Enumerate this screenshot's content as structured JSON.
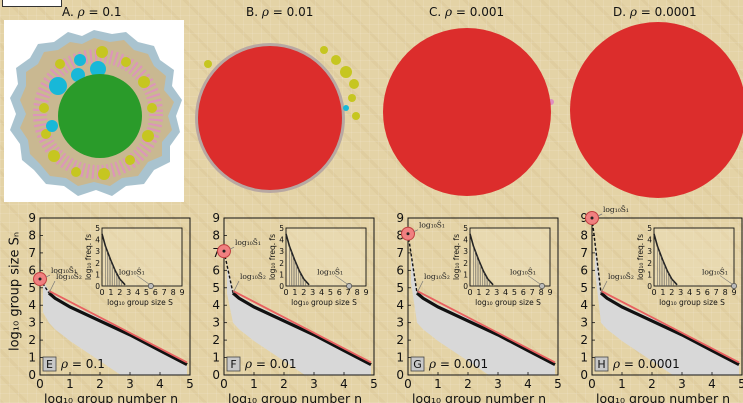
{
  "figure": {
    "top_panels": [
      {
        "letter": "A.",
        "rho": "0.1"
      },
      {
        "letter": "B.",
        "rho": "0.01"
      },
      {
        "letter": "C.",
        "rho": "0.001"
      },
      {
        "letter": "D.",
        "rho": "0.0001"
      }
    ],
    "main_ylabel": "log₁₀ group size Sₙ",
    "inset_ylabel": "log₁₀ freq. fs",
    "annotations": [
      "log₁₀Ŝ₁",
      "log₁₀Ŝ₂"
    ],
    "colors": {
      "giant": "#dc2d2c",
      "first_group": "#2a9b2a",
      "cyan_groups": "#18b8d8",
      "yellow_groups": "#c6c620",
      "fit_line": "#e86060",
      "shade": "#d6d6d6"
    }
  },
  "chart_data": [
    {
      "type": "scatter",
      "panel": "E",
      "rho": "0.1",
      "xlabel": "log₁₀ group number n",
      "ylabel": "log₁₀ group size Sₙ",
      "xlim": [
        0,
        5
      ],
      "ylim": [
        0,
        9
      ],
      "xticks": [
        "0",
        "1",
        "2",
        "3",
        "4",
        "5"
      ],
      "yticks": [
        "0",
        "1",
        "2",
        "3",
        "4",
        "5",
        "6",
        "7",
        "8",
        "9"
      ],
      "highlight_point": [
        0,
        5.5
      ],
      "rank_curve": [
        [
          0,
          5.5
        ],
        [
          0.3,
          4.7
        ],
        [
          0.5,
          4.4
        ],
        [
          1,
          3.9
        ],
        [
          2,
          3.1
        ],
        [
          3,
          2.3
        ],
        [
          4,
          1.4
        ],
        [
          4.9,
          0.6
        ]
      ],
      "inset": {
        "xlabel": "log₁₀ group size S",
        "ylabel": "log₁₀ freq. fs",
        "xlim": [
          0,
          9
        ],
        "ylim": [
          0,
          5
        ],
        "xticks": [
          "0",
          "1",
          "2",
          "3",
          "4",
          "5",
          "6",
          "7",
          "8",
          "9"
        ],
        "yticks": [
          "0",
          "1",
          "2",
          "3",
          "4",
          "5"
        ],
        "freq_curve": [
          [
            0,
            4.5
          ],
          [
            0.4,
            3.4
          ],
          [
            1,
            2.2
          ],
          [
            1.5,
            1.3
          ],
          [
            2,
            0.6
          ],
          [
            2.6,
            0.1
          ]
        ],
        "marker_x": 5.5
      }
    },
    {
      "type": "scatter",
      "panel": "F",
      "rho": "0.01",
      "xlabel": "log₁₀ group number n",
      "ylabel": "log₁₀ group size Sₙ",
      "xlim": [
        0,
        5
      ],
      "ylim": [
        0,
        9
      ],
      "xticks": [
        "0",
        "1",
        "2",
        "3",
        "4",
        "5"
      ],
      "yticks": [
        "0",
        "1",
        "2",
        "3",
        "4",
        "5",
        "6",
        "7",
        "8",
        "9"
      ],
      "highlight_point": [
        0,
        7.1
      ],
      "rank_curve": [
        [
          0,
          7.1
        ],
        [
          0.3,
          4.7
        ],
        [
          0.5,
          4.4
        ],
        [
          1,
          3.9
        ],
        [
          2,
          3.1
        ],
        [
          3,
          2.3
        ],
        [
          4,
          1.4
        ],
        [
          4.9,
          0.6
        ]
      ],
      "inset": {
        "xlabel": "log₁₀ group size S",
        "ylabel": "log₁₀ freq. fs",
        "xlim": [
          0,
          9
        ],
        "ylim": [
          0,
          5
        ],
        "xticks": [
          "0",
          "1",
          "2",
          "3",
          "4",
          "5",
          "6",
          "7",
          "8",
          "9"
        ],
        "yticks": [
          "0",
          "1",
          "2",
          "3",
          "4",
          "5"
        ],
        "freq_curve": [
          [
            0,
            4.5
          ],
          [
            0.4,
            3.4
          ],
          [
            1,
            2.2
          ],
          [
            1.5,
            1.3
          ],
          [
            2,
            0.6
          ],
          [
            2.6,
            0.1
          ]
        ],
        "marker_x": 7.1
      }
    },
    {
      "type": "scatter",
      "panel": "G",
      "rho": "0.001",
      "xlabel": "log₁₀ group number n",
      "ylabel": "log₁₀ group size Sₙ",
      "xlim": [
        0,
        5
      ],
      "ylim": [
        0,
        9
      ],
      "xticks": [
        "0",
        "1",
        "2",
        "3",
        "4",
        "5"
      ],
      "yticks": [
        "0",
        "1",
        "2",
        "3",
        "4",
        "5",
        "6",
        "7",
        "8",
        "9"
      ],
      "highlight_point": [
        0,
        8.1
      ],
      "rank_curve": [
        [
          0,
          8.1
        ],
        [
          0.3,
          4.7
        ],
        [
          0.5,
          4.4
        ],
        [
          1,
          3.9
        ],
        [
          2,
          3.1
        ],
        [
          3,
          2.3
        ],
        [
          4,
          1.4
        ],
        [
          4.9,
          0.6
        ]
      ],
      "inset": {
        "xlabel": "log₁₀ group size S",
        "ylabel": "log₁₀ freq. fs",
        "xlim": [
          0,
          9
        ],
        "ylim": [
          0,
          5
        ],
        "xticks": [
          "0",
          "1",
          "2",
          "3",
          "4",
          "5",
          "6",
          "7",
          "8",
          "9"
        ],
        "yticks": [
          "0",
          "1",
          "2",
          "3",
          "4",
          "5"
        ],
        "freq_curve": [
          [
            0,
            4.5
          ],
          [
            0.4,
            3.4
          ],
          [
            1,
            2.2
          ],
          [
            1.5,
            1.3
          ],
          [
            2,
            0.6
          ],
          [
            2.6,
            0.1
          ]
        ],
        "marker_x": 8.1
      }
    },
    {
      "type": "scatter",
      "panel": "H",
      "rho": "0.0001",
      "xlabel": "log₁₀ group number n",
      "ylabel": "log₁₀ group size Sₙ",
      "xlim": [
        0,
        5
      ],
      "ylim": [
        0,
        9
      ],
      "xticks": [
        "0",
        "1",
        "2",
        "3",
        "4",
        "5"
      ],
      "yticks": [
        "0",
        "1",
        "2",
        "3",
        "4",
        "5",
        "6",
        "7",
        "8",
        "9"
      ],
      "highlight_point": [
        0,
        9.0
      ],
      "rank_curve": [
        [
          0,
          9.0
        ],
        [
          0.3,
          4.7
        ],
        [
          0.5,
          4.4
        ],
        [
          1,
          3.9
        ],
        [
          2,
          3.1
        ],
        [
          3,
          2.3
        ],
        [
          4,
          1.4
        ],
        [
          4.9,
          0.6
        ]
      ],
      "inset": {
        "xlabel": "log₁₀ group size S",
        "ylabel": "log₁₀ freq. fs",
        "xlim": [
          0,
          9
        ],
        "ylim": [
          0,
          5
        ],
        "xticks": [
          "0",
          "1",
          "2",
          "3",
          "4",
          "5",
          "6",
          "7",
          "8",
          "9"
        ],
        "yticks": [
          "0",
          "1",
          "2",
          "3",
          "4",
          "5"
        ],
        "freq_curve": [
          [
            0,
            4.5
          ],
          [
            0.4,
            3.4
          ],
          [
            1,
            2.2
          ],
          [
            1.5,
            1.3
          ],
          [
            2,
            0.6
          ],
          [
            2.6,
            0.1
          ]
        ],
        "marker_x": 9.0
      }
    }
  ]
}
